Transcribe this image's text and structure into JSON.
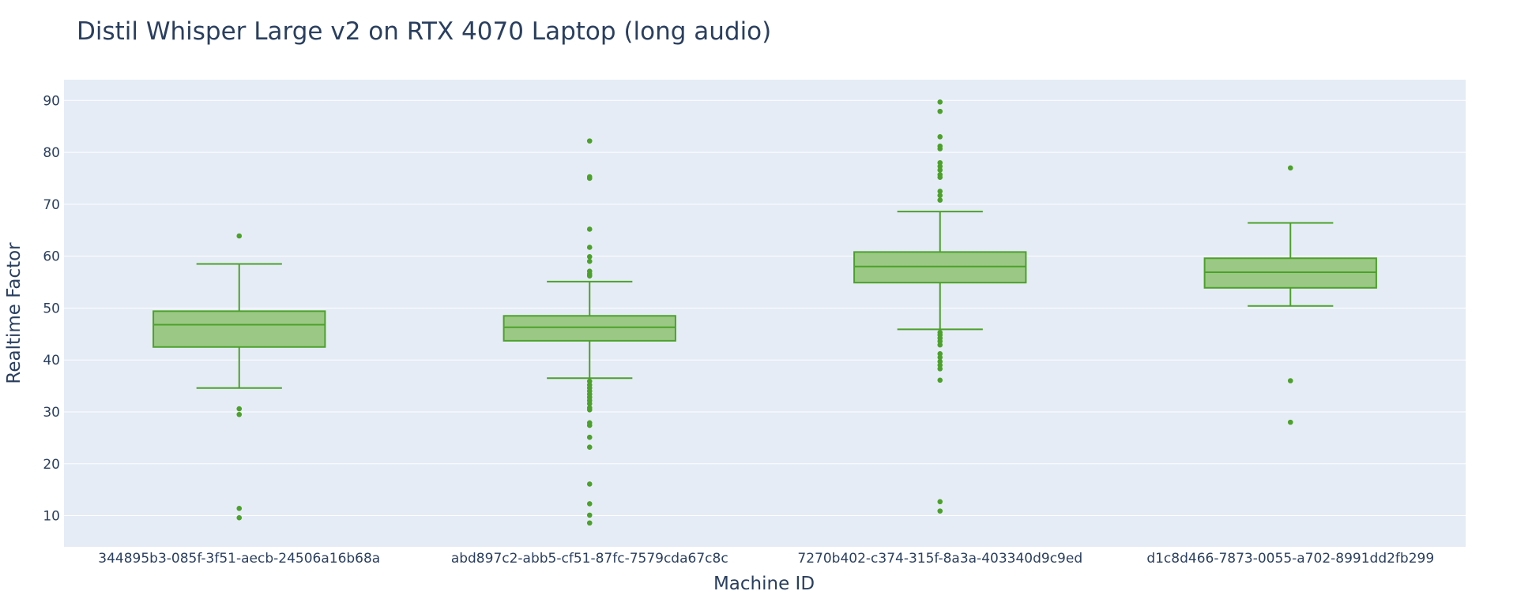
{
  "chart_data": {
    "type": "box",
    "title": "Distil Whisper Large v2 on RTX 4070 Laptop (long audio)",
    "xlabel": "Machine ID",
    "ylabel": "Realtime Factor",
    "ylim": [
      4,
      94
    ],
    "yticks": [
      10,
      20,
      30,
      40,
      50,
      60,
      70,
      80,
      90
    ],
    "grid": true,
    "legend": "none",
    "colors": {
      "box_fill": "#9bc985",
      "box_line": "#4ca12a",
      "plot_bg": "#e5ecf6",
      "grid": "#ffffff",
      "text": "#2a3f5f"
    },
    "categories": [
      "344895b3-085f-3f51-aecb-24506a16b68a",
      "abd897c2-abb5-cf51-87fc-7579cda67c8c",
      "7270b402-c374-315f-8a3a-403340d9c9ed",
      "d1c8d466-7873-0055-a702-8991dd2fb299"
    ],
    "boxes": [
      {
        "lower_whisker": 34.6,
        "q1": 42.5,
        "median": 46.8,
        "q3": 49.4,
        "upper_whisker": 58.5,
        "outliers": [
          63.9,
          30.6,
          29.5,
          11.4,
          9.6
        ]
      },
      {
        "lower_whisker": 36.5,
        "q1": 43.7,
        "median": 46.3,
        "q3": 48.5,
        "upper_whisker": 55.1,
        "outliers": [
          82.2,
          75.3,
          75.0,
          65.2,
          61.7,
          59.9,
          59.0,
          57.1,
          56.6,
          56.2,
          35.9,
          35.2,
          34.6,
          34.0,
          33.4,
          32.8,
          32.2,
          31.6,
          30.8,
          30.4,
          27.9,
          27.4,
          25.1,
          23.2,
          16.1,
          12.3,
          10.1,
          8.6
        ]
      },
      {
        "lower_whisker": 45.9,
        "q1": 54.9,
        "median": 58.0,
        "q3": 60.8,
        "upper_whisker": 68.6,
        "outliers": [
          89.7,
          87.9,
          83.0,
          81.2,
          80.7,
          78.0,
          77.3,
          76.6,
          75.7,
          75.2,
          72.5,
          71.7,
          70.8,
          45.3,
          44.8,
          44.2,
          43.6,
          42.9,
          41.2,
          40.5,
          39.7,
          39.0,
          38.3,
          36.1,
          12.7,
          10.9
        ]
      },
      {
        "lower_whisker": 50.4,
        "q1": 53.9,
        "median": 56.9,
        "q3": 59.6,
        "upper_whisker": 66.4,
        "outliers": [
          77.0,
          36.0,
          28.0
        ]
      }
    ]
  }
}
